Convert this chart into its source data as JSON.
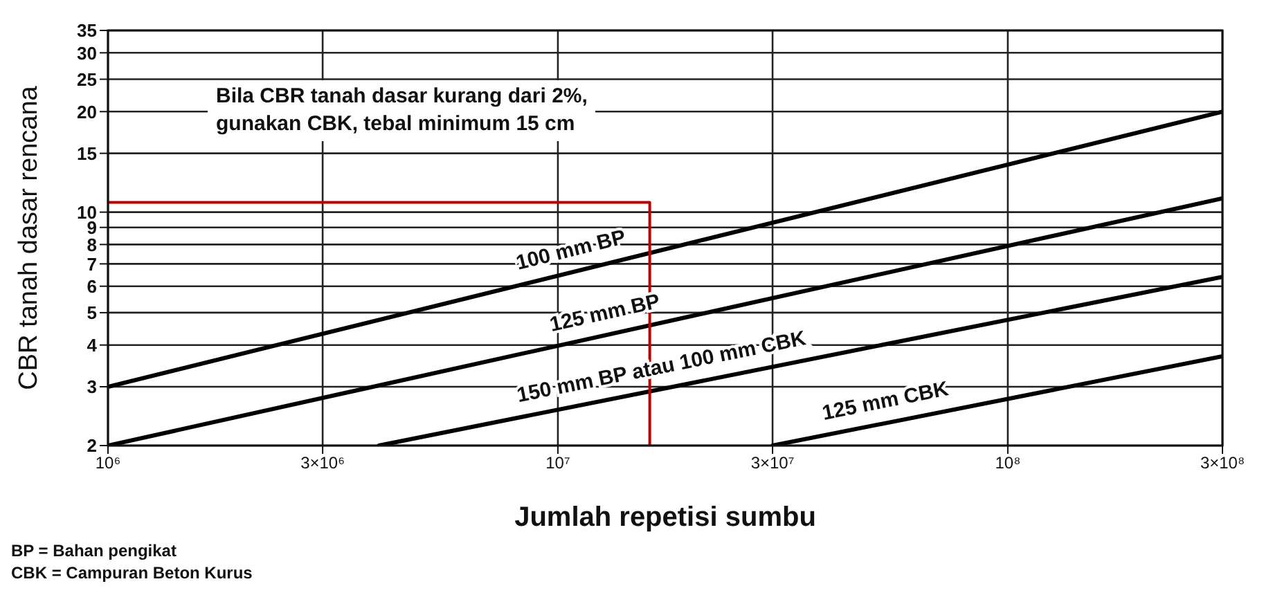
{
  "chart_data": {
    "type": "line",
    "xlabel": "Jumlah repetisi sumbu",
    "ylabel": "CBR tanah dasar rencana",
    "log": "xy",
    "grid": true,
    "marker": "none",
    "line_style": "solid",
    "xlim": [
      1000000,
      300000000
    ],
    "xticks": [
      {
        "value": 1000000,
        "label": "10⁶"
      },
      {
        "value": 3000000,
        "label": "3×10⁶"
      },
      {
        "value": 10000000,
        "label": "10⁷"
      },
      {
        "value": 30000000,
        "label": "3×10⁷"
      },
      {
        "value": 100000000,
        "label": "10⁸"
      },
      {
        "value": 300000000,
        "label": "3×10⁸"
      }
    ],
    "ylim": [
      2,
      35
    ],
    "yticks": [
      2,
      3,
      4,
      5,
      6,
      7,
      8,
      9,
      10,
      15,
      20,
      25,
      30,
      35
    ],
    "series": [
      {
        "name": "100 mm BP",
        "color": "#000000",
        "x": [
          1000000,
          300000000
        ],
        "values": [
          3,
          20
        ]
      },
      {
        "name": "125 mm BP",
        "color": "#000000",
        "x": [
          1000000,
          300000000
        ],
        "values": [
          2,
          11
        ]
      },
      {
        "name": "150 mm BP atau 100 mm CBK",
        "color": "#000000",
        "x": [
          4000000,
          300000000
        ],
        "values": [
          2,
          6.4
        ]
      },
      {
        "name": "125 mm CBK",
        "color": "#000000",
        "x": [
          30000000,
          300000000
        ],
        "values": [
          2,
          3.7
        ]
      },
      {
        "color": "#c00000",
        "x": [
          1000000,
          16000000,
          16000000
        ],
        "values": [
          10.7,
          10.7,
          2
        ]
      }
    ],
    "annotations": [
      "Bila CBR tanah dasar kurang dari 2%,\ngunakan CBK, tebal minimum 15 cm",
      "BP = Bahan pengikat",
      "CBK = Campuran Beton Kurus"
    ]
  }
}
